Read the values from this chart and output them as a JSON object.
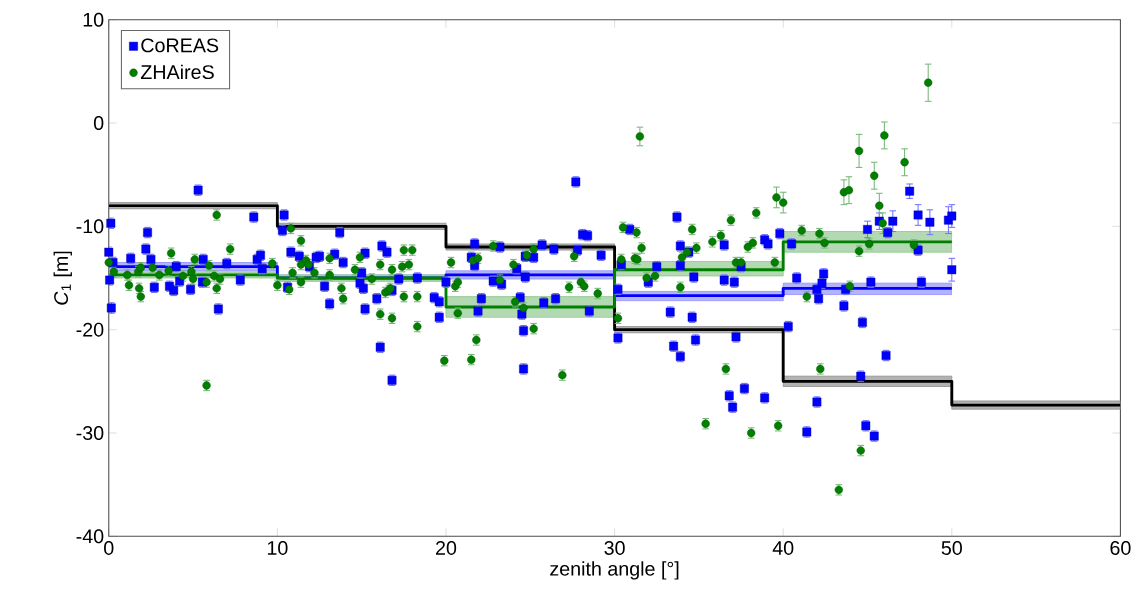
{
  "chart_data": {
    "type": "scatter",
    "xlabel": "zenith angle [°]",
    "ylabel": "*C*$_{1}$ [m]",
    "xlim": [
      0,
      60
    ],
    "ylim": [
      -40,
      10
    ],
    "xticks": [
      0,
      10,
      20,
      30,
      40,
      50,
      60
    ],
    "yticks": [
      -40,
      -30,
      -20,
      -10,
      0,
      10
    ],
    "legend": "top left",
    "series": [
      {
        "name": "CoREAS",
        "color": "#0000ff",
        "marker": "square",
        "x": [
          0.12,
          0.0,
          0.25,
          0.05,
          0.15,
          2.3,
          2.2,
          1.3,
          2.5,
          2.7,
          3.6,
          3.85,
          4.2,
          4.0,
          4.85,
          5.3,
          5.6,
          5.55,
          6.5,
          7.0,
          7.8,
          8.6,
          8.8,
          9.0,
          9.1,
          10.4,
          10.3,
          10.8,
          11.3,
          10.6,
          11.9,
          12.3,
          12.5,
          12.8,
          13.1,
          13.4,
          13.7,
          13.9,
          15.0,
          14.9,
          15.1,
          15.2,
          15.9,
          15.2,
          16.2,
          16.5,
          16.8,
          16.1,
          16.8,
          17.2,
          18.3,
          19.3,
          19.6,
          19.6,
          20.0,
          21.7,
          21.5,
          21.7,
          21.9,
          22.1,
          22.8,
          23.3,
          23.2,
          24.2,
          24.4,
          24.5,
          24.6,
          24.6,
          24.7,
          24.7,
          25.2,
          25.7,
          25.8,
          26.4,
          26.5,
          27.7,
          27.8,
          28.1,
          28.4,
          29.2,
          28.5,
          30.2,
          30.2,
          30.4,
          30.9,
          32.0,
          32.5,
          33.7,
          33.3,
          33.5,
          33.9,
          33.9,
          34.4,
          33.9,
          34.7,
          34.6,
          34.8,
          36.5,
          36.5,
          37.1,
          37.2,
          36.8,
          37.0,
          37.7,
          38.9,
          38.9,
          39.1,
          39.8,
          37.5,
          40.3,
          40.5,
          40.8,
          42.0,
          42.1,
          42.3,
          42.4,
          43.6,
          43.7,
          44.6,
          44.7,
          45.2,
          46.1,
          46.2,
          48.0,
          48.2,
          42.0,
          41.4,
          44.9,
          45.4,
          47.5,
          45.0,
          45.7,
          46.5,
          48.0,
          48.7,
          49.8,
          50.0,
          50.0
        ],
        "values": [
          -9.7,
          -12.5,
          -13.5,
          -15.2,
          -17.9,
          -10.6,
          -12.2,
          -13.1,
          -13.2,
          -15.9,
          -15.8,
          -16.2,
          -15.3,
          -13.9,
          -16.1,
          -6.5,
          -13.2,
          -15.4,
          -18.0,
          -13.6,
          -15.2,
          -9.1,
          -13.2,
          -12.8,
          -14.1,
          -8.9,
          -10.4,
          -12.5,
          -12.9,
          -15.9,
          -13.9,
          -13.0,
          -12.9,
          -15.8,
          -17.5,
          -12.7,
          -10.6,
          -13.5,
          -14.5,
          -15.5,
          -16.0,
          -12.6,
          -17.0,
          -18.0,
          -11.9,
          -12.5,
          -16.2,
          -21.7,
          -24.9,
          -15.1,
          -15.0,
          -16.9,
          -17.3,
          -18.8,
          -15.4,
          -11.7,
          -13.0,
          -13.8,
          -18.2,
          -17.0,
          -15.3,
          -15.6,
          -12.0,
          -14.1,
          -16.9,
          -18.5,
          -20.1,
          -23.8,
          -12.9,
          -14.9,
          -13.0,
          -11.8,
          -17.4,
          -12.2,
          -17.0,
          -5.7,
          -12.3,
          -10.8,
          -10.9,
          -12.8,
          -18.2,
          -16.1,
          -20.8,
          -13.7,
          -10.3,
          -15.4,
          -13.9,
          -9.1,
          -18.3,
          -21.6,
          -22.6,
          -11.9,
          -12.5,
          -13.8,
          -14.9,
          -18.8,
          -21.0,
          -11.8,
          -15.2,
          -15.4,
          -20.7,
          -26.4,
          -27.5,
          -25.7,
          -26.6,
          -11.3,
          -11.7,
          -10.7,
          -13.9,
          -19.7,
          -11.7,
          -15.0,
          -16.1,
          -17.0,
          -15.5,
          -14.6,
          -17.7,
          -16.1,
          -24.5,
          -19.3,
          -15.4,
          -22.5,
          -10.6,
          -12.3,
          -15.4,
          -27.0,
          -29.9,
          -29.3,
          -30.3,
          -6.6,
          -10.3,
          -9.5,
          -9.5,
          -8.9,
          -9.6,
          -9.4,
          -9.0,
          -14.2
        ],
        "errors": [
          0.5,
          0.5,
          0.5,
          0.5,
          0.5,
          0.5,
          0.5,
          0.5,
          0.5,
          0.5,
          0.5,
          0.5,
          0.5,
          0.5,
          0.5,
          0.5,
          0.5,
          0.5,
          0.5,
          0.5,
          0.5,
          0.5,
          0.5,
          0.5,
          0.5,
          0.5,
          0.5,
          0.5,
          0.5,
          0.5,
          0.5,
          0.5,
          0.5,
          0.5,
          0.5,
          0.5,
          0.5,
          0.5,
          0.5,
          0.5,
          0.5,
          0.5,
          0.5,
          0.5,
          0.5,
          0.5,
          0.5,
          0.5,
          0.5,
          0.5,
          0.5,
          0.5,
          0.5,
          0.5,
          0.5,
          0.5,
          0.5,
          0.5,
          0.5,
          0.5,
          0.5,
          0.5,
          0.5,
          0.5,
          0.5,
          0.5,
          0.5,
          0.5,
          0.5,
          0.5,
          0.5,
          0.5,
          0.5,
          0.5,
          0.5,
          0.5,
          0.5,
          0.5,
          0.5,
          0.5,
          0.5,
          0.5,
          0.5,
          0.5,
          0.5,
          0.5,
          0.5,
          0.5,
          0.5,
          0.5,
          0.5,
          0.5,
          0.5,
          0.5,
          0.5,
          0.5,
          0.5,
          0.5,
          0.5,
          0.5,
          0.5,
          0.5,
          0.5,
          0.5,
          0.5,
          0.5,
          0.5,
          0.5,
          0.5,
          0.5,
          0.5,
          0.5,
          0.5,
          0.5,
          0.5,
          0.5,
          0.5,
          0.5,
          0.5,
          0.5,
          0.5,
          0.5,
          0.5,
          0.5,
          0.5,
          0.5,
          0.5,
          0.5,
          0.5,
          0.7,
          0.8,
          0.8,
          1.0,
          1.0,
          1.2,
          1.3,
          1.1,
          1.1
        ]
      },
      {
        "name": "ZHAireS",
        "color": "#007f00",
        "marker": "circle",
        "x": [
          0.0,
          0.3,
          1.1,
          1.2,
          1.75,
          1.8,
          1.9,
          1.9,
          2.6,
          3.0,
          3.55,
          3.7,
          4.4,
          4.9,
          5.0,
          5.1,
          5.8,
          5.8,
          5.95,
          6.4,
          6.25,
          6.4,
          6.6,
          7.2,
          9.7,
          10.0,
          10.7,
          10.8,
          10.9,
          11.4,
          11.4,
          11.4,
          11.7,
          11.85,
          12.2,
          13.1,
          13.1,
          13.8,
          13.9,
          14.6,
          14.9,
          15.6,
          16.1,
          16.1,
          16.4,
          16.6,
          16.7,
          16.8,
          16.8,
          17.4,
          17.5,
          17.5,
          17.8,
          18.0,
          18.3,
          18.3,
          19.9,
          20.3,
          20.55,
          20.7,
          20.7,
          21.5,
          21.8,
          21.6,
          21.9,
          22.8,
          23.2,
          24.0,
          24.1,
          24.6,
          24.8,
          25.2,
          25.2,
          26.9,
          27.3,
          27.6,
          28.0,
          28.2,
          29.0,
          30.2,
          30.4,
          30.5,
          31.2,
          31.35,
          31.3,
          31.6,
          31.9,
          32.4,
          33.9,
          34.0,
          34.3,
          34.6,
          34.85,
          35.8,
          36.3,
          36.9,
          36.6,
          37.2,
          37.5,
          37.9,
          38.2,
          38.4,
          39.5,
          41.1,
          41.4,
          42.2,
          42.15,
          42.45,
          43.95,
          44.5,
          45.1,
          47.75,
          35.4,
          38.1,
          39.7,
          43.3,
          44.6,
          31.5,
          39.6,
          40.0,
          43.6,
          43.9,
          44.5,
          45.4,
          45.7,
          45.9,
          46.0,
          47.2,
          48.6
        ],
        "values": [
          -13.5,
          -14.4,
          -14.7,
          -15.7,
          -14.4,
          -16.0,
          -16.8,
          -14.0,
          -14.0,
          -14.7,
          -14.3,
          -12.6,
          -14.8,
          -14.4,
          -15.1,
          -13.2,
          -15.4,
          -25.4,
          -13.8,
          -16.0,
          -14.8,
          -8.9,
          -15.1,
          -12.2,
          -13.6,
          -15.7,
          -16.1,
          -10.2,
          -14.5,
          -11.4,
          -15.4,
          -13.7,
          -13.3,
          -13.7,
          -14.5,
          -13.1,
          -14.7,
          -16.0,
          -17.0,
          -14.2,
          -13.0,
          -15.1,
          -13.7,
          -18.5,
          -16.4,
          -16.2,
          -16.0,
          -14.2,
          -18.9,
          -13.9,
          -12.3,
          -16.8,
          -13.7,
          -12.3,
          -16.8,
          -19.7,
          -23.0,
          -13.5,
          -15.8,
          -15.4,
          -18.4,
          -22.9,
          -21.0,
          -13.3,
          -13.1,
          -11.9,
          -15.2,
          -13.7,
          -17.3,
          -17.9,
          -12.8,
          -12.2,
          -19.9,
          -24.4,
          -15.9,
          -12.9,
          -15.4,
          -15.8,
          -16.5,
          -18.9,
          -13.2,
          -10.1,
          -13.1,
          -13.2,
          -10.6,
          -12.1,
          -15.0,
          -14.8,
          -15.9,
          -13.0,
          -12.5,
          -10.3,
          -12.1,
          -11.5,
          -10.9,
          -9.4,
          -23.8,
          -13.5,
          -13.5,
          -12.0,
          -11.6,
          -8.7,
          -13.5,
          -10.4,
          -16.8,
          -23.8,
          -10.7,
          -11.6,
          -15.8,
          -12.4,
          -11.7,
          -11.8,
          -29.1,
          -30.0,
          -29.3,
          -35.5,
          -31.7,
          -1.3,
          -7.2,
          -7.7,
          -6.7,
          -6.5,
          -2.7,
          -5.1,
          -8.0,
          -9.7,
          -1.2,
          -3.8,
          3.9
        ],
        "errors": [
          0.5,
          0.5,
          0.5,
          0.5,
          0.5,
          0.5,
          0.5,
          0.5,
          0.5,
          0.5,
          0.5,
          0.5,
          0.5,
          0.5,
          0.5,
          0.5,
          0.5,
          0.5,
          0.5,
          0.5,
          0.5,
          0.5,
          0.5,
          0.5,
          0.5,
          0.5,
          0.5,
          0.5,
          0.5,
          0.5,
          0.5,
          0.5,
          0.5,
          0.5,
          0.5,
          0.5,
          0.5,
          0.5,
          0.5,
          0.5,
          0.5,
          0.5,
          0.5,
          0.5,
          0.5,
          0.5,
          0.5,
          0.5,
          0.5,
          0.5,
          0.5,
          0.5,
          0.5,
          0.5,
          0.5,
          0.5,
          0.5,
          0.5,
          0.5,
          0.5,
          0.5,
          0.5,
          0.5,
          0.5,
          0.5,
          0.5,
          0.5,
          0.5,
          0.5,
          0.5,
          0.5,
          0.5,
          0.5,
          0.5,
          0.5,
          0.5,
          0.5,
          0.5,
          0.5,
          0.5,
          0.5,
          0.5,
          0.5,
          0.5,
          0.5,
          0.5,
          0.5,
          0.5,
          0.5,
          0.5,
          0.5,
          0.5,
          0.5,
          0.5,
          0.5,
          0.5,
          0.5,
          0.5,
          0.5,
          0.5,
          0.5,
          0.5,
          0.5,
          0.5,
          0.5,
          0.5,
          0.5,
          0.5,
          0.5,
          0.5,
          0.5,
          0.5,
          0.5,
          0.5,
          0.5,
          0.5,
          0.5,
          0.9,
          1.0,
          1.0,
          1.2,
          1.3,
          1.6,
          1.3,
          1.2,
          1.0,
          1.3,
          1.3,
          1.8
        ]
      },
      {
        "type": "step",
        "color": "#000000",
        "x": [
          0,
          10,
          20,
          30,
          40,
          50,
          60
        ],
        "values": [
          -8,
          -10,
          -12,
          -20,
          -25,
          -27.3,
          -27.3
        ],
        "lower": [
          -8.3,
          -10.3,
          -12.3,
          -20.3,
          -25.5,
          -27.7,
          -27.7
        ],
        "upper": [
          -7.7,
          -9.7,
          -11.7,
          -19.7,
          -24.5,
          -26.9,
          -26.9
        ]
      },
      {
        "type": "step",
        "color": "#0000ff",
        "x": [
          0,
          10,
          20,
          30,
          40,
          50
        ],
        "values": [
          -13.9,
          -15.0,
          -14.7,
          -16.7,
          -16.0,
          -16.0
        ],
        "lower": [
          -14.3,
          -15.3,
          -15.1,
          -17.2,
          -16.6,
          -16.6
        ],
        "upper": [
          -13.5,
          -14.7,
          -14.3,
          -16.3,
          -15.5,
          -15.5
        ]
      },
      {
        "type": "step",
        "color": "#007f00",
        "x": [
          0,
          10,
          20,
          30,
          40,
          50
        ],
        "values": [
          -14.7,
          -15.0,
          -17.8,
          -14.2,
          -11.5,
          -11.5
        ],
        "lower": [
          -15.0,
          -15.3,
          -18.8,
          -14.8,
          -12.5,
          -12.5
        ],
        "upper": [
          -14.4,
          -14.7,
          -16.8,
          -13.4,
          -10.5,
          -10.5
        ]
      }
    ]
  }
}
